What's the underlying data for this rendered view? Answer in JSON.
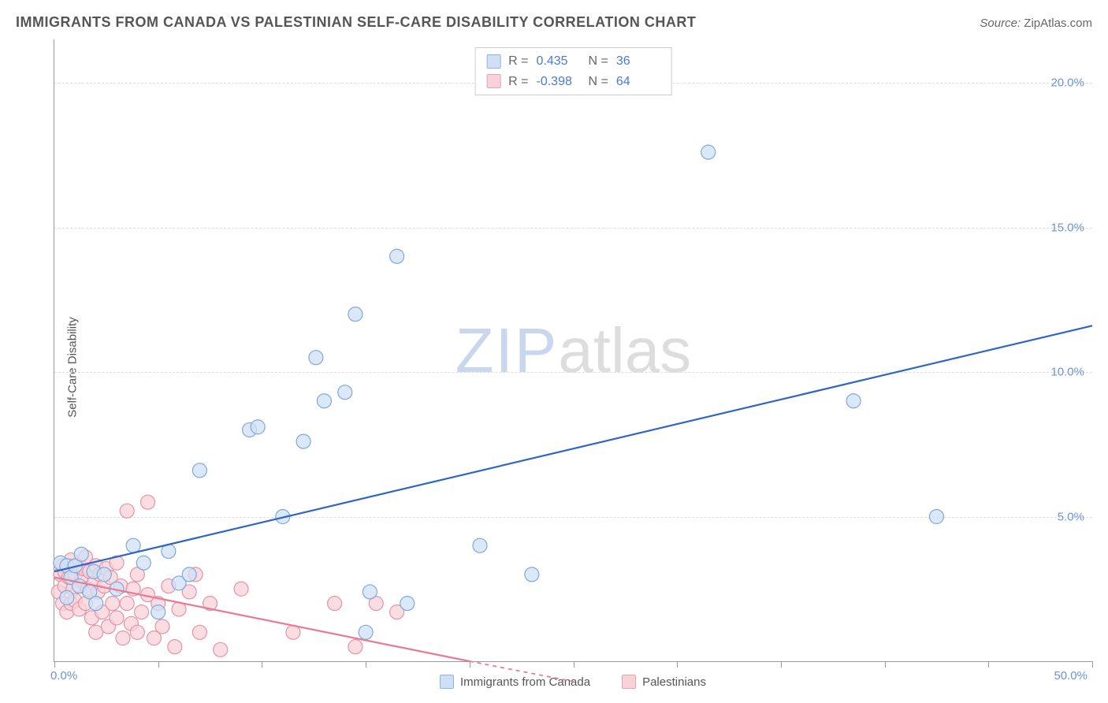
{
  "header": {
    "title": "IMMIGRANTS FROM CANADA VS PALESTINIAN SELF-CARE DISABILITY CORRELATION CHART",
    "source_label": "Source:",
    "source_value": "ZipAtlas.com"
  },
  "chart": {
    "type": "scatter",
    "y_axis_title": "Self-Care Disability",
    "x_min": 0.0,
    "x_max": 50.0,
    "y_min": 0.0,
    "y_max": 21.5,
    "x_origin_label": "0.0%",
    "x_max_label": "50.0%",
    "y_ticks": [
      {
        "v": 5.0,
        "label": "5.0%"
      },
      {
        "v": 10.0,
        "label": "10.0%"
      },
      {
        "v": 15.0,
        "label": "15.0%"
      },
      {
        "v": 20.0,
        "label": "20.0%"
      }
    ],
    "x_tick_positions": [
      0,
      5,
      10,
      15,
      20,
      25,
      30,
      35,
      40,
      45,
      50
    ],
    "grid_color": "#dddddd",
    "background_color": "#ffffff",
    "axis_color": "#999999",
    "tick_label_color": "#6b93d6",
    "marker_radius": 9,
    "marker_stroke_width": 1.2,
    "trend_line_width": 2.2,
    "watermark_zip": "ZIP",
    "watermark_atlas": "atlas"
  },
  "legend_box": {
    "rows": [
      {
        "swatch_fill": "#cfe0f5",
        "swatch_stroke": "#8fb3e0",
        "r_label": "R =",
        "r_value": "0.435",
        "n_label": "N =",
        "n_value": "36"
      },
      {
        "swatch_fill": "#f8d2da",
        "swatch_stroke": "#e7a3b1",
        "r_label": "R =",
        "r_value": "-0.398",
        "n_label": "N =",
        "n_value": "64"
      }
    ]
  },
  "bottom_legend": {
    "items": [
      {
        "swatch_fill": "#cfe0f5",
        "swatch_stroke": "#8fb3e0",
        "label": "Immigrants from Canada"
      },
      {
        "swatch_fill": "#f8d2da",
        "swatch_stroke": "#e7a3b1",
        "label": "Palestinians"
      }
    ]
  },
  "series": [
    {
      "name": "Immigrants from Canada",
      "marker_fill": "#cfe0f5",
      "marker_stroke": "#7fa8d9",
      "trend_color": "#2f66c4",
      "trend": {
        "x1": 0.0,
        "y1": 3.1,
        "x2": 50.0,
        "y2": 11.6
      },
      "points": [
        {
          "x": 0.3,
          "y": 3.4
        },
        {
          "x": 0.6,
          "y": 2.2
        },
        {
          "x": 0.6,
          "y": 3.3
        },
        {
          "x": 0.8,
          "y": 2.9
        },
        {
          "x": 1.0,
          "y": 3.3
        },
        {
          "x": 1.2,
          "y": 2.6
        },
        {
          "x": 1.3,
          "y": 3.7
        },
        {
          "x": 1.7,
          "y": 2.4
        },
        {
          "x": 1.9,
          "y": 3.1
        },
        {
          "x": 2.0,
          "y": 2.0
        },
        {
          "x": 2.4,
          "y": 3.0
        },
        {
          "x": 3.0,
          "y": 2.5
        },
        {
          "x": 3.8,
          "y": 4.0
        },
        {
          "x": 4.3,
          "y": 3.4
        },
        {
          "x": 5.5,
          "y": 3.8
        },
        {
          "x": 6.0,
          "y": 2.7
        },
        {
          "x": 6.5,
          "y": 3.0
        },
        {
          "x": 7.0,
          "y": 6.6
        },
        {
          "x": 9.4,
          "y": 8.0
        },
        {
          "x": 9.8,
          "y": 8.1
        },
        {
          "x": 11.0,
          "y": 5.0
        },
        {
          "x": 12.0,
          "y": 7.6
        },
        {
          "x": 12.6,
          "y": 10.5
        },
        {
          "x": 13.0,
          "y": 9.0
        },
        {
          "x": 14.0,
          "y": 9.3
        },
        {
          "x": 14.5,
          "y": 12.0
        },
        {
          "x": 15.0,
          "y": 1.0
        },
        {
          "x": 15.2,
          "y": 2.4
        },
        {
          "x": 16.5,
          "y": 14.0
        },
        {
          "x": 17.0,
          "y": 2.0
        },
        {
          "x": 20.5,
          "y": 4.0
        },
        {
          "x": 23.0,
          "y": 3.0
        },
        {
          "x": 31.5,
          "y": 17.6
        },
        {
          "x": 38.5,
          "y": 9.0
        },
        {
          "x": 42.5,
          "y": 5.0
        },
        {
          "x": 5.0,
          "y": 1.7
        }
      ]
    },
    {
      "name": "Palestinians",
      "marker_fill": "#f8d2da",
      "marker_stroke": "#e394a5",
      "trend_color": "#e77a94",
      "trend": {
        "x1": 0.0,
        "y1": 2.9,
        "x2": 20.0,
        "y2": 0.0
      },
      "trend_dashed_ext": {
        "x1": 20.0,
        "y1": 0.0,
        "x2": 25.0,
        "y2": -0.7
      },
      "points": [
        {
          "x": 0.2,
          "y": 2.4
        },
        {
          "x": 0.3,
          "y": 3.0
        },
        {
          "x": 0.4,
          "y": 2.0
        },
        {
          "x": 0.4,
          "y": 3.3
        },
        {
          "x": 0.5,
          "y": 2.6
        },
        {
          "x": 0.5,
          "y": 3.1
        },
        {
          "x": 0.6,
          "y": 1.7
        },
        {
          "x": 0.7,
          "y": 2.9
        },
        {
          "x": 0.7,
          "y": 3.3
        },
        {
          "x": 0.8,
          "y": 2.0
        },
        {
          "x": 0.8,
          "y": 3.5
        },
        {
          "x": 0.9,
          "y": 2.5
        },
        {
          "x": 1.0,
          "y": 3.0
        },
        {
          "x": 1.0,
          "y": 2.1
        },
        {
          "x": 1.1,
          "y": 3.3
        },
        {
          "x": 1.2,
          "y": 1.8
        },
        {
          "x": 1.3,
          "y": 2.8
        },
        {
          "x": 1.4,
          "y": 3.2
        },
        {
          "x": 1.5,
          "y": 2.0
        },
        {
          "x": 1.5,
          "y": 3.6
        },
        {
          "x": 1.6,
          "y": 2.5
        },
        {
          "x": 1.7,
          "y": 3.1
        },
        {
          "x": 1.8,
          "y": 1.5
        },
        {
          "x": 1.9,
          "y": 2.7
        },
        {
          "x": 2.0,
          "y": 3.3
        },
        {
          "x": 2.0,
          "y": 1.0
        },
        {
          "x": 2.1,
          "y": 2.4
        },
        {
          "x": 2.2,
          "y": 3.0
        },
        {
          "x": 2.3,
          "y": 1.7
        },
        {
          "x": 2.4,
          "y": 2.6
        },
        {
          "x": 2.5,
          "y": 3.2
        },
        {
          "x": 2.6,
          "y": 1.2
        },
        {
          "x": 2.7,
          "y": 2.9
        },
        {
          "x": 2.8,
          "y": 2.0
        },
        {
          "x": 3.0,
          "y": 3.4
        },
        {
          "x": 3.0,
          "y": 1.5
        },
        {
          "x": 3.2,
          "y": 2.6
        },
        {
          "x": 3.3,
          "y": 0.8
        },
        {
          "x": 3.5,
          "y": 2.0
        },
        {
          "x": 3.5,
          "y": 5.2
        },
        {
          "x": 3.7,
          "y": 1.3
        },
        {
          "x": 3.8,
          "y": 2.5
        },
        {
          "x": 4.0,
          "y": 1.0
        },
        {
          "x": 4.0,
          "y": 3.0
        },
        {
          "x": 4.2,
          "y": 1.7
        },
        {
          "x": 4.5,
          "y": 2.3
        },
        {
          "x": 4.5,
          "y": 5.5
        },
        {
          "x": 4.8,
          "y": 0.8
        },
        {
          "x": 5.0,
          "y": 2.0
        },
        {
          "x": 5.2,
          "y": 1.2
        },
        {
          "x": 5.5,
          "y": 2.6
        },
        {
          "x": 5.8,
          "y": 0.5
        },
        {
          "x": 6.0,
          "y": 1.8
        },
        {
          "x": 6.5,
          "y": 2.4
        },
        {
          "x": 6.8,
          "y": 3.0
        },
        {
          "x": 7.0,
          "y": 1.0
        },
        {
          "x": 7.5,
          "y": 2.0
        },
        {
          "x": 8.0,
          "y": 0.4
        },
        {
          "x": 9.0,
          "y": 2.5
        },
        {
          "x": 11.5,
          "y": 1.0
        },
        {
          "x": 13.5,
          "y": 2.0
        },
        {
          "x": 14.5,
          "y": 0.5
        },
        {
          "x": 15.5,
          "y": 2.0
        },
        {
          "x": 16.5,
          "y": 1.7
        }
      ]
    }
  ]
}
